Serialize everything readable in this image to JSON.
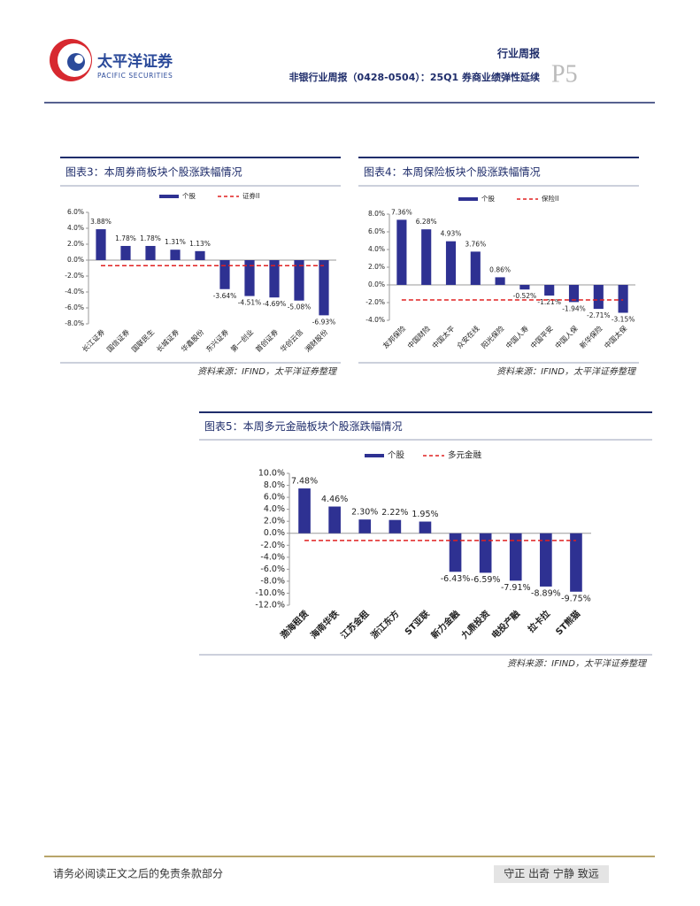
{
  "header": {
    "logo_cn": "太平洋证券",
    "logo_en": "PACIFIC SECURITIES",
    "section": "行业周报",
    "title": "非银行业周报（0428-0504）：25Q1 券商业绩弹性延续",
    "page": "P5"
  },
  "chart_data": [
    {
      "type": "bar",
      "title": "图表3：本周券商板块个股涨跌幅情况",
      "categories": [
        "长江证券",
        "国信证券",
        "国联民生",
        "长城证券",
        "华鑫股份",
        "东兴证券",
        "第一创业",
        "首创证券",
        "华创云信",
        "湘财股份"
      ],
      "series": [
        {
          "name": "个股",
          "color": "#2e3192",
          "values": [
            3.88,
            1.78,
            1.78,
            1.31,
            1.13,
            -3.64,
            -4.51,
            -4.69,
            -5.08,
            -6.93
          ],
          "value_labels": [
            "3.88%",
            "1.78%",
            "1.78%",
            "1.31%",
            "1.13%",
            "-3.64%",
            "-4.51%",
            "-4.69%",
            "-5.08%",
            "-6.93%"
          ]
        }
      ],
      "reference": {
        "name": "证券II",
        "color": "#e02020",
        "value": -0.7
      },
      "ylim": [
        -8,
        6
      ],
      "yticks": [
        {
          "value": -8,
          "label": "-8.0%"
        },
        {
          "value": -6,
          "label": "-6.0%"
        },
        {
          "value": -4,
          "label": "-4.0%"
        },
        {
          "value": -2,
          "label": "-2.0%"
        },
        {
          "value": 0,
          "label": "0.0%"
        },
        {
          "value": 2,
          "label": "2.0%"
        },
        {
          "value": 4,
          "label": "4.0%"
        },
        {
          "value": 6,
          "label": "6.0%"
        }
      ],
      "source": "资料来源：IFIND，太平洋证券整理"
    },
    {
      "type": "bar",
      "title": "图表4：本周保险板块个股涨跌幅情况",
      "categories": [
        "友邦保险",
        "中国财险",
        "中国太平",
        "众安在线",
        "阳光保险",
        "中国人寿",
        "中国平安",
        "中国人保",
        "新华保险",
        "中国太保"
      ],
      "series": [
        {
          "name": "个股",
          "color": "#2e3192",
          "values": [
            7.36,
            6.28,
            4.93,
            3.76,
            0.86,
            -0.52,
            -1.21,
            -1.94,
            -2.71,
            -3.15
          ],
          "value_labels": [
            "7.36%",
            "6.28%",
            "4.93%",
            "3.76%",
            "0.86%",
            "-0.52%",
            "-1.21%",
            "-1.94%",
            "-2.71%",
            "-3.15%"
          ]
        }
      ],
      "reference": {
        "name": "保险II",
        "color": "#e02020",
        "value": -1.7
      },
      "ylim": [
        -4,
        8
      ],
      "yticks": [
        {
          "value": -4,
          "label": "-4.0%"
        },
        {
          "value": -2,
          "label": "-2.0%"
        },
        {
          "value": 0,
          "label": "0.0%"
        },
        {
          "value": 2,
          "label": "2.0%"
        },
        {
          "value": 4,
          "label": "4.0%"
        },
        {
          "value": 6,
          "label": "6.0%"
        },
        {
          "value": 8,
          "label": "8.0%"
        }
      ],
      "source": "资料来源：IFIND，太平洋证券整理"
    },
    {
      "type": "bar",
      "title": "图表5：本周多元金融板块个股涨跌幅情况",
      "categories": [
        "渤海租赁",
        "海南华铁",
        "江苏金租",
        "浙江东方",
        "ST亚联",
        "新力金融",
        "九鼎投资",
        "电投产融",
        "拉卡拉",
        "ST熊猫"
      ],
      "series": [
        {
          "name": "个股",
          "color": "#2e3192",
          "values": [
            7.48,
            4.46,
            2.3,
            2.22,
            1.95,
            -6.43,
            -6.59,
            -7.91,
            -8.89,
            -9.75
          ],
          "value_labels": [
            "7.48%",
            "4.46%",
            "2.30%",
            "2.22%",
            "1.95%",
            "-6.43%",
            "-6.59%",
            "-7.91%",
            "-8.89%",
            "-9.75%"
          ]
        }
      ],
      "reference": {
        "name": "多元金融",
        "color": "#e02020",
        "value": -1.2
      },
      "ylim": [
        -12,
        10
      ],
      "yticks": [
        {
          "value": -12,
          "label": "-12.0%"
        },
        {
          "value": -10,
          "label": "-10.0%"
        },
        {
          "value": -8,
          "label": "-8.0%"
        },
        {
          "value": -6,
          "label": "-6.0%"
        },
        {
          "value": -4,
          "label": "-4.0%"
        },
        {
          "value": -2,
          "label": "-2.0%"
        },
        {
          "value": 0,
          "label": "0.0%"
        },
        {
          "value": 2,
          "label": "2.0%"
        },
        {
          "value": 4,
          "label": "4.0%"
        },
        {
          "value": 6,
          "label": "6.0%"
        },
        {
          "value": 8,
          "label": "8.0%"
        },
        {
          "value": 10,
          "label": "10.0%"
        }
      ],
      "source": "资料来源：IFIND，太平洋证券整理"
    }
  ],
  "footer": {
    "disclaimer": "请务必阅读正文之后的免责条款部分",
    "motto": "守正 出奇 宁静 致远"
  }
}
